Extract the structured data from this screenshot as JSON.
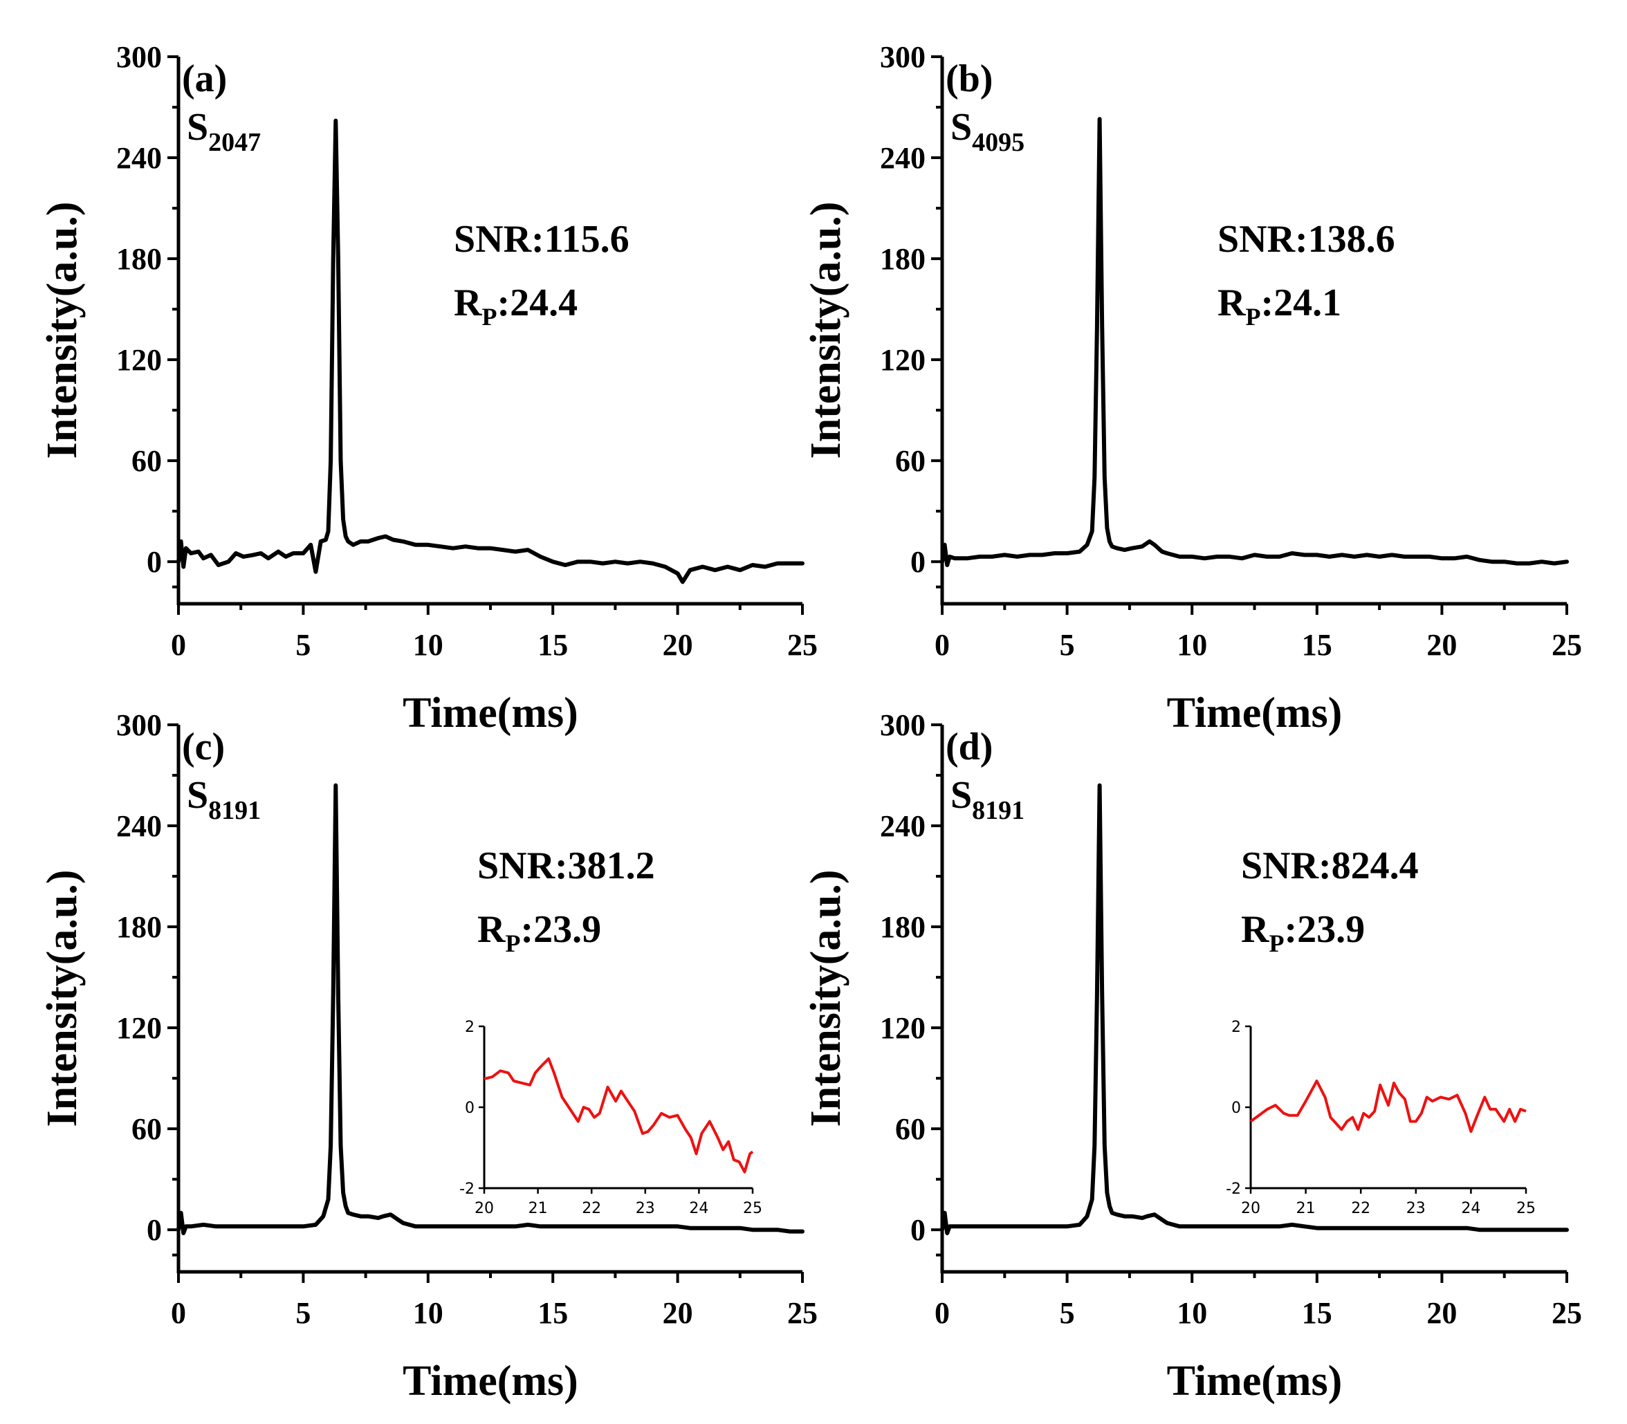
{
  "chart_data": [
    {
      "type": "line",
      "panel_label": "(a)",
      "seq_main": "S",
      "seq_sub": "2047",
      "snr_text": "SNR:115.6",
      "rp_main": "R",
      "rp_sub": "P",
      "rp_value": ":24.4",
      "xlabel": "Time(ms)",
      "ylabel": "Intensity(a.u.)",
      "xlim": [
        0,
        25
      ],
      "ylim": [
        -25,
        300
      ],
      "xticks": [
        "0",
        "5",
        "10",
        "15",
        "20",
        "25"
      ],
      "yticks": [
        "0",
        "60",
        "120",
        "180",
        "240",
        "300"
      ],
      "x": [
        0,
        0.1,
        0.2,
        0.3,
        0.5,
        0.8,
        1.0,
        1.3,
        1.6,
        2.0,
        2.3,
        2.6,
        3.0,
        3.3,
        3.6,
        4.0,
        4.3,
        4.6,
        5.0,
        5.3,
        5.5,
        5.7,
        5.9,
        6.0,
        6.1,
        6.2,
        6.3,
        6.4,
        6.5,
        6.6,
        6.7,
        6.8,
        7.0,
        7.3,
        7.6,
        8.0,
        8.3,
        8.6,
        9.0,
        9.5,
        10.0,
        10.5,
        11.0,
        11.5,
        12.0,
        12.5,
        13.0,
        13.5,
        14.0,
        14.5,
        15.0,
        15.5,
        16.0,
        16.5,
        17.0,
        17.5,
        18.0,
        18.5,
        19.0,
        19.5,
        20.0,
        20.2,
        20.5,
        21.0,
        21.5,
        22.0,
        22.5,
        23.0,
        23.5,
        24.0,
        24.5,
        25.0
      ],
      "y": [
        0,
        12,
        -3,
        8,
        5,
        6,
        2,
        4,
        -2,
        0,
        5,
        3,
        4,
        5,
        2,
        6,
        3,
        5,
        5,
        10,
        -6,
        12,
        13,
        18,
        60,
        180,
        262,
        180,
        60,
        25,
        15,
        12,
        10,
        12,
        12,
        14,
        15,
        13,
        12,
        10,
        10,
        9,
        8,
        9,
        8,
        8,
        7,
        6,
        7,
        3,
        0,
        -2,
        0,
        0,
        -1,
        0,
        -1,
        0,
        -1,
        -3,
        -7,
        -12,
        -5,
        -3,
        -5,
        -3,
        -5,
        -2,
        -3,
        -1,
        -1,
        -1
      ]
    },
    {
      "type": "line",
      "panel_label": "(b)",
      "seq_main": "S",
      "seq_sub": "4095",
      "snr_text": "SNR:138.6",
      "rp_main": "R",
      "rp_sub": "P",
      "rp_value": ":24.1",
      "xlabel": "Time(ms)",
      "ylabel": "Intensity(a.u.)",
      "xlim": [
        0,
        25
      ],
      "ylim": [
        -25,
        300
      ],
      "xticks": [
        "0",
        "5",
        "10",
        "15",
        "20",
        "25"
      ],
      "yticks": [
        "0",
        "60",
        "120",
        "180",
        "240",
        "300"
      ],
      "x": [
        0,
        0.1,
        0.2,
        0.3,
        0.5,
        1.0,
        1.5,
        2.0,
        2.5,
        3.0,
        3.5,
        4.0,
        4.5,
        5.0,
        5.5,
        5.8,
        6.0,
        6.1,
        6.2,
        6.3,
        6.4,
        6.5,
        6.6,
        6.7,
        6.8,
        7.0,
        7.3,
        7.6,
        8.0,
        8.3,
        8.5,
        8.8,
        9.0,
        9.5,
        10.0,
        10.5,
        11.0,
        11.5,
        12.0,
        12.5,
        13.0,
        13.5,
        14.0,
        14.5,
        15.0,
        15.5,
        16.0,
        16.5,
        17.0,
        17.5,
        18.0,
        18.5,
        19.0,
        19.5,
        20.0,
        20.5,
        21.0,
        21.5,
        22.0,
        22.5,
        23.0,
        23.5,
        24.0,
        24.5,
        25.0
      ],
      "y": [
        0,
        10,
        -2,
        3,
        2,
        2,
        3,
        3,
        4,
        3,
        4,
        4,
        5,
        5,
        6,
        10,
        18,
        50,
        140,
        263,
        140,
        50,
        20,
        12,
        9,
        8,
        7,
        8,
        9,
        12,
        10,
        6,
        5,
        3,
        3,
        2,
        3,
        3,
        2,
        4,
        3,
        3,
        5,
        4,
        4,
        3,
        4,
        3,
        4,
        3,
        4,
        3,
        3,
        3,
        2,
        2,
        3,
        1,
        0,
        0,
        -1,
        -1,
        0,
        -1,
        0
      ]
    },
    {
      "type": "line",
      "panel_label": "(c)",
      "seq_main": "S",
      "seq_sub": "8191",
      "snr_text": "SNR:381.2",
      "rp_main": "R",
      "rp_sub": "P",
      "rp_value": ":23.9",
      "xlabel": "Time(ms)",
      "ylabel": "Intensity(a.u.)",
      "xlim": [
        0,
        25
      ],
      "ylim": [
        -25,
        300
      ],
      "xticks": [
        "0",
        "5",
        "10",
        "15",
        "20",
        "25"
      ],
      "yticks": [
        "0",
        "60",
        "120",
        "180",
        "240",
        "300"
      ],
      "x": [
        0,
        0.1,
        0.2,
        0.3,
        0.5,
        1.0,
        1.5,
        2.0,
        2.5,
        3.0,
        3.5,
        4.0,
        4.5,
        5.0,
        5.5,
        5.8,
        6.0,
        6.1,
        6.2,
        6.3,
        6.4,
        6.5,
        6.6,
        6.7,
        6.8,
        7.0,
        7.3,
        7.6,
        8.0,
        8.2,
        8.5,
        8.8,
        9.0,
        9.5,
        10.0,
        10.5,
        11.0,
        11.5,
        12.0,
        12.5,
        13.0,
        13.5,
        14.0,
        14.5,
        15.0,
        15.5,
        16.0,
        16.5,
        17.0,
        17.5,
        18.0,
        18.5,
        19.0,
        19.5,
        20.0,
        20.5,
        21.0,
        21.5,
        22.0,
        22.5,
        23.0,
        23.5,
        24.0,
        24.5,
        25.0
      ],
      "y": [
        0,
        10,
        -2,
        2,
        2,
        3,
        2,
        2,
        2,
        2,
        2,
        2,
        2,
        2,
        3,
        8,
        18,
        50,
        140,
        264,
        140,
        50,
        22,
        14,
        10,
        9,
        8,
        8,
        7,
        8,
        9,
        6,
        4,
        2,
        2,
        2,
        2,
        2,
        2,
        2,
        2,
        2,
        3,
        2,
        2,
        2,
        2,
        2,
        2,
        2,
        2,
        2,
        2,
        2,
        2,
        1,
        1,
        1,
        1,
        1,
        0,
        0,
        0,
        -1,
        -1
      ]
    },
    {
      "type": "line",
      "panel_label": "(d)",
      "seq_main": "S",
      "seq_sub": "8191",
      "snr_text": "SNR:824.4",
      "rp_main": "R",
      "rp_sub": "P",
      "rp_value": ":23.9",
      "xlabel": "Time(ms)",
      "ylabel": "Intensity(a.u.)",
      "xlim": [
        0,
        25
      ],
      "ylim": [
        -25,
        300
      ],
      "xticks": [
        "0",
        "5",
        "10",
        "15",
        "20",
        "25"
      ],
      "yticks": [
        "0",
        "60",
        "120",
        "180",
        "240",
        "300"
      ],
      "x": [
        0,
        0.1,
        0.2,
        0.3,
        0.5,
        1.0,
        1.5,
        2.0,
        2.5,
        3.0,
        3.5,
        4.0,
        4.5,
        5.0,
        5.5,
        5.8,
        6.0,
        6.1,
        6.2,
        6.3,
        6.4,
        6.5,
        6.6,
        6.7,
        6.8,
        7.0,
        7.3,
        7.6,
        8.0,
        8.2,
        8.5,
        8.8,
        9.0,
        9.5,
        10.0,
        10.5,
        11.0,
        11.5,
        12.0,
        12.5,
        13.0,
        13.5,
        14.0,
        14.5,
        15.0,
        15.5,
        16.0,
        16.5,
        17.0,
        17.5,
        18.0,
        18.5,
        19.0,
        19.5,
        20.0,
        20.5,
        21.0,
        21.5,
        22.0,
        22.5,
        23.0,
        23.5,
        24.0,
        24.5,
        25.0
      ],
      "y": [
        0,
        10,
        -2,
        2,
        2,
        2,
        2,
        2,
        2,
        2,
        2,
        2,
        2,
        2,
        3,
        8,
        18,
        50,
        140,
        264,
        140,
        50,
        22,
        14,
        10,
        9,
        8,
        8,
        7,
        8,
        9,
        6,
        4,
        2,
        2,
        2,
        2,
        2,
        2,
        2,
        2,
        2,
        3,
        2,
        1,
        1,
        1,
        1,
        1,
        1,
        1,
        1,
        1,
        1,
        1,
        1,
        1,
        0,
        0,
        0,
        0,
        0,
        0,
        0,
        0
      ],
      "inset": {
        "xlim": [
          20,
          25
        ],
        "ylim": [
          -2,
          2
        ],
        "xticks": [
          "20",
          "21",
          "22",
          "23",
          "24",
          "25"
        ],
        "yticks": [
          "-2",
          "0",
          "2"
        ],
        "x": [
          20.0,
          20.1,
          20.2,
          20.3,
          20.45,
          20.6,
          20.7,
          20.85,
          21.0,
          21.1,
          21.2,
          21.35,
          21.45,
          21.55,
          21.65,
          21.75,
          21.85,
          21.95,
          22.05,
          22.15,
          22.25,
          22.35,
          22.5,
          22.6,
          22.7,
          22.8,
          22.9,
          23.0,
          23.1,
          23.2,
          23.3,
          23.45,
          23.6,
          23.75,
          23.9,
          24.0,
          24.1,
          24.25,
          24.35,
          24.45,
          24.6,
          24.7,
          24.8,
          24.9,
          25.0
        ],
        "y": [
          -0.35,
          -0.25,
          -0.15,
          -0.05,
          0.05,
          -0.15,
          -0.2,
          -0.2,
          0.15,
          0.4,
          0.65,
          0.25,
          -0.25,
          -0.4,
          -0.55,
          -0.35,
          -0.25,
          -0.55,
          -0.15,
          -0.25,
          -0.1,
          0.55,
          0.05,
          0.6,
          0.35,
          0.2,
          -0.35,
          -0.35,
          -0.15,
          0.25,
          0.15,
          0.25,
          0.2,
          0.3,
          -0.15,
          -0.6,
          -0.25,
          0.25,
          -0.05,
          -0.05,
          -0.35,
          -0.05,
          -0.35,
          -0.05,
          -0.1
        ]
      }
    }
  ],
  "inset_c": {
    "xlim": [
      20,
      25
    ],
    "ylim": [
      -2,
      2
    ],
    "xticks": [
      "20",
      "21",
      "22",
      "23",
      "24",
      "25"
    ],
    "yticks": [
      "-2",
      "0",
      "2"
    ],
    "x": [
      20.0,
      20.15,
      20.3,
      20.45,
      20.55,
      20.7,
      20.85,
      20.95,
      21.05,
      21.2,
      21.3,
      21.45,
      21.6,
      21.75,
      21.85,
      21.95,
      22.05,
      22.15,
      22.3,
      22.45,
      22.55,
      22.65,
      22.8,
      22.95,
      23.05,
      23.15,
      23.3,
      23.45,
      23.6,
      23.75,
      23.85,
      23.95,
      24.05,
      24.2,
      24.35,
      24.45,
      24.55,
      24.65,
      24.75,
      24.85,
      24.95,
      25.0
    ],
    "y": [
      0.7,
      0.75,
      0.9,
      0.85,
      0.65,
      0.6,
      0.55,
      0.85,
      1.0,
      1.2,
      0.85,
      0.25,
      -0.05,
      -0.35,
      0.0,
      -0.05,
      -0.25,
      -0.15,
      0.5,
      0.15,
      0.4,
      0.2,
      -0.1,
      -0.65,
      -0.6,
      -0.45,
      -0.15,
      -0.25,
      -0.2,
      -0.55,
      -0.75,
      -1.15,
      -0.65,
      -0.35,
      -0.75,
      -1.05,
      -0.85,
      -1.3,
      -1.35,
      -1.6,
      -1.15,
      -1.1
    ]
  }
}
